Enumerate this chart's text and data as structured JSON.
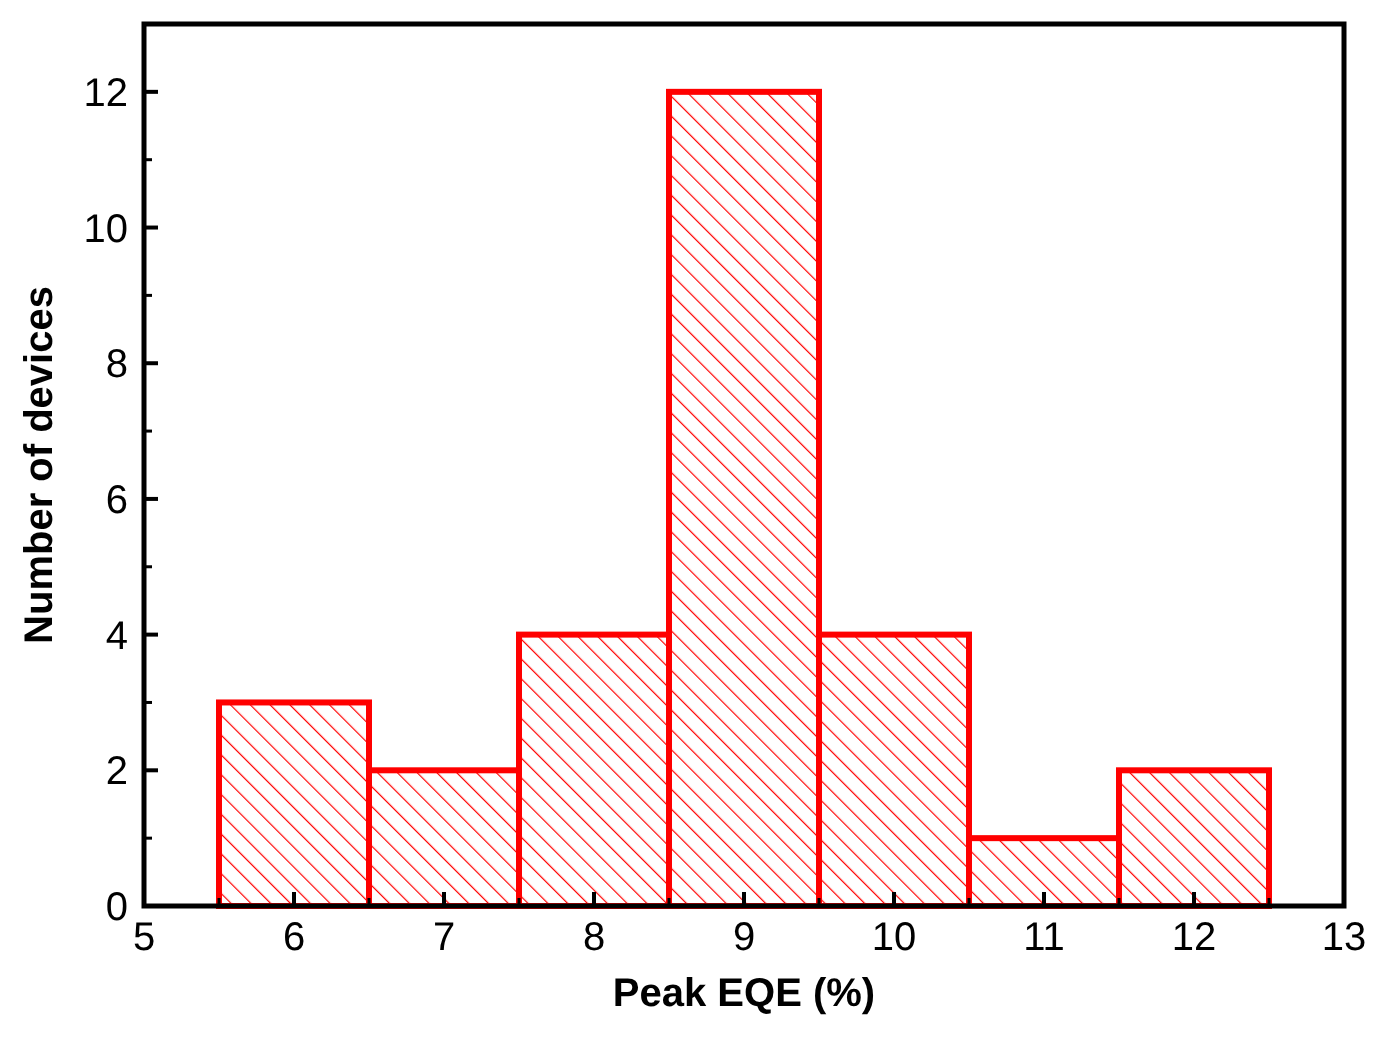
{
  "chart_data": {
    "type": "histogram",
    "xlabel": "Peak EQE (%)",
    "ylabel": "Number of devices",
    "bins": [
      5.5,
      6.5,
      7.5,
      8.5,
      9.5,
      10.5,
      11.5,
      12.5
    ],
    "values": [
      3,
      2,
      4,
      12,
      4,
      1,
      2
    ],
    "color": "#ff0000",
    "xlim": [
      5,
      13
    ],
    "xticks": [
      5,
      6,
      7,
      8,
      9,
      10,
      11,
      12,
      13
    ],
    "ylim": [
      0,
      13
    ],
    "yticks": [
      0,
      2,
      4,
      6,
      8,
      10,
      12
    ],
    "grid": false
  }
}
